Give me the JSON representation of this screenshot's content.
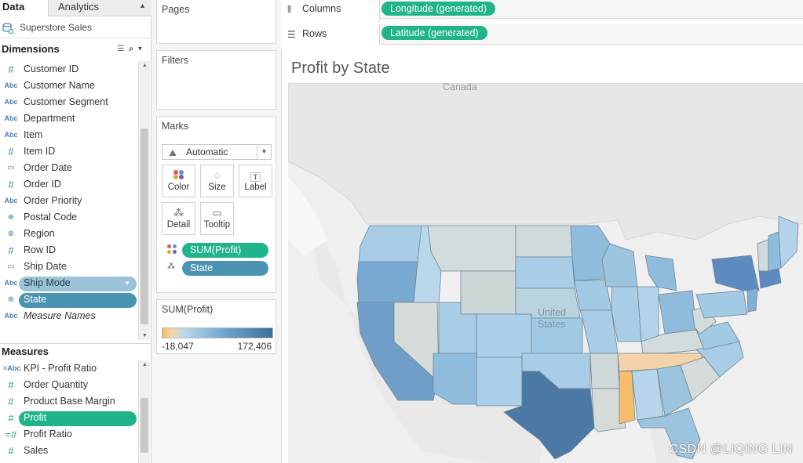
{
  "tabs": {
    "data": "Data",
    "analytics": "Analytics"
  },
  "datasource": {
    "name": "Superstore Sales"
  },
  "dimensions": {
    "header": "Dimensions",
    "items": [
      {
        "label": "Customer ID",
        "type": "#"
      },
      {
        "label": "Customer Name",
        "type": "Abc"
      },
      {
        "label": "Customer Segment",
        "type": "Abc"
      },
      {
        "label": "Department",
        "type": "Abc"
      },
      {
        "label": "Item",
        "type": "Abc"
      },
      {
        "label": "Item ID",
        "type": "#"
      },
      {
        "label": "Order Date",
        "type": "date"
      },
      {
        "label": "Order ID",
        "type": "#"
      },
      {
        "label": "Order Priority",
        "type": "Abc"
      },
      {
        "label": "Postal Code",
        "type": "geo"
      },
      {
        "label": "Region",
        "type": "geo"
      },
      {
        "label": "Row ID",
        "type": "#"
      },
      {
        "label": "Ship Date",
        "type": "date"
      },
      {
        "label": "Ship Mode",
        "type": "Abc"
      },
      {
        "label": "State",
        "type": "geo"
      },
      {
        "label": "Measure Names",
        "type": "Abc"
      }
    ]
  },
  "measures": {
    "header": "Measures",
    "items": [
      {
        "label": "KPI - Profit Ratio",
        "type": "=Abc"
      },
      {
        "label": "Order Quantity",
        "type": "#"
      },
      {
        "label": "Product Base Margin",
        "type": "#"
      },
      {
        "label": "Profit",
        "type": "#"
      },
      {
        "label": "Profit Ratio",
        "type": "=#"
      },
      {
        "label": "Sales",
        "type": "#"
      }
    ]
  },
  "cards": {
    "pages": "Pages",
    "filters": "Filters",
    "marks": "Marks",
    "mark_type": "Automatic",
    "buttons": {
      "color": "Color",
      "size": "Size",
      "label": "Label",
      "detail": "Detail",
      "tooltip": "Tooltip"
    },
    "mark_pills": {
      "color_field": "SUM(Profit)",
      "detail_field": "State"
    },
    "legend_title": "SUM(Profit)",
    "legend_min": "-18,047",
    "legend_max": "172,406",
    "colors": {
      "negative": "#f5b860",
      "positive": "#3d6f9c"
    }
  },
  "shelves": {
    "columns_label": "Columns",
    "columns_pill": "Longitude (generated)",
    "rows_label": "Rows",
    "rows_pill": "Latitude (generated)"
  },
  "viz": {
    "title": "Profit by State",
    "map_labels": {
      "canada": "Canada",
      "us": "United States"
    }
  },
  "watermark": "CSDN @LIQING LIN"
}
